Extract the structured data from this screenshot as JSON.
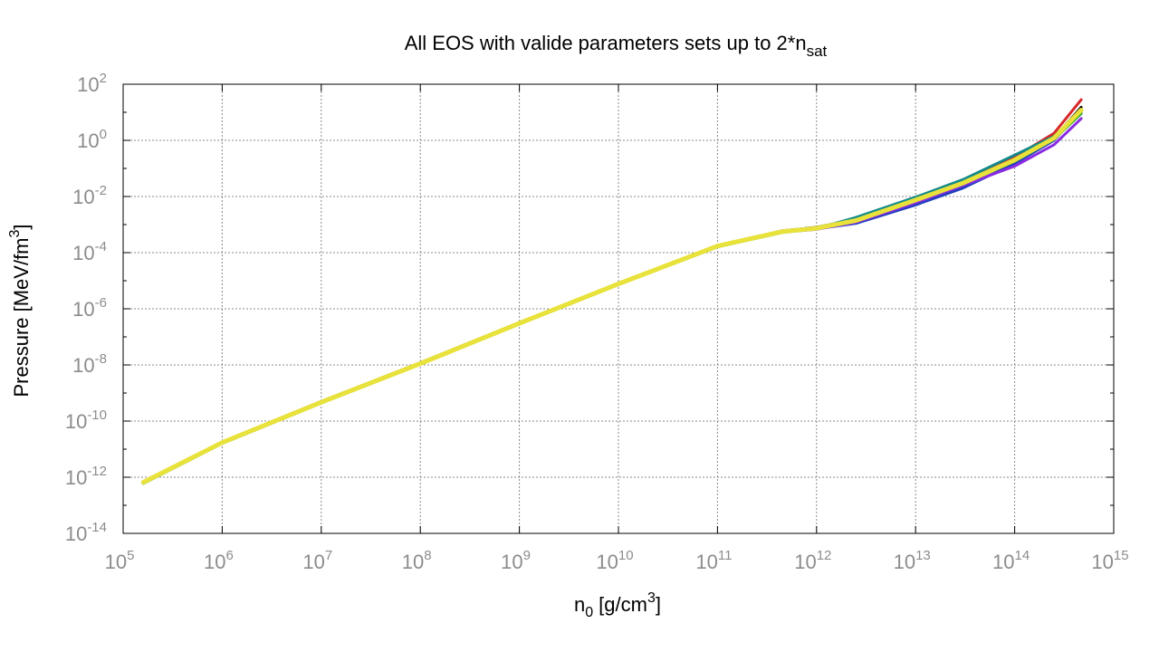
{
  "chart_data": {
    "type": "line",
    "title": {
      "main": "All EOS with valide parameters sets up to 2*n",
      "sub": "sat"
    },
    "xlabel": {
      "base": "n",
      "base_sub": "0",
      "bracket": "[g/cm",
      "sup": "3",
      "close": "]"
    },
    "ylabel": {
      "text": "Pressure [MeV/fm",
      "sup": "3",
      "close": "]"
    },
    "xscale": "log",
    "yscale": "log",
    "xlim": [
      100000,
      1000000000000000
    ],
    "ylim": [
      1e-14,
      100
    ],
    "grid": true,
    "legend": false,
    "x_ticks": [
      {
        "base": "10",
        "exp": "5"
      },
      {
        "base": "10",
        "exp": "6"
      },
      {
        "base": "10",
        "exp": "7"
      },
      {
        "base": "10",
        "exp": "8"
      },
      {
        "base": "10",
        "exp": "9"
      },
      {
        "base": "10",
        "exp": "10"
      },
      {
        "base": "10",
        "exp": "11"
      },
      {
        "base": "10",
        "exp": "12"
      },
      {
        "base": "10",
        "exp": "13"
      },
      {
        "base": "10",
        "exp": "14"
      },
      {
        "base": "10",
        "exp": "15"
      }
    ],
    "y_ticks": [
      {
        "base": "10",
        "exp": "-14"
      },
      {
        "base": "10",
        "exp": "-12"
      },
      {
        "base": "10",
        "exp": "-10"
      },
      {
        "base": "10",
        "exp": "-8"
      },
      {
        "base": "10",
        "exp": "-6"
      },
      {
        "base": "10",
        "exp": "-4"
      },
      {
        "base": "10",
        "exp": "-2"
      },
      {
        "base": "10",
        "exp": "0"
      },
      {
        "base": "10",
        "exp": "2"
      }
    ],
    "series": [
      {
        "color": "#000000",
        "x": [
          160000,
          1000000.0,
          10000000.0,
          100000000.0,
          1000000000.0,
          10000000000.0,
          100000000000.0,
          450000000000.0,
          1000000000000.0,
          2500000000000.0,
          10000000000000.0,
          30000000000000.0,
          100000000000000.0,
          250000000000000.0,
          470000000000000.0
        ],
        "y": [
          7e-13,
          1.8e-11,
          5e-10,
          1.2e-08,
          3.2e-07,
          8e-06,
          0.00018,
          0.0006,
          0.0008,
          0.0015,
          0.008,
          0.03,
          0.2,
          1.2,
          15
        ]
      },
      {
        "color": "#d62728",
        "x": [
          160000,
          1000000.0,
          10000000.0,
          100000000.0,
          1000000000.0,
          10000000000.0,
          100000000000.0,
          450000000000.0,
          1000000000000.0,
          2500000000000.0,
          10000000000000.0,
          30000000000000.0,
          100000000000000.0,
          250000000000000.0,
          470000000000000.0
        ],
        "y": [
          6.8e-13,
          1.75e-11,
          4.8e-10,
          1.15e-08,
          3.1e-07,
          7.8e-06,
          0.000175,
          0.00058,
          0.00075,
          0.0013,
          0.009,
          0.035,
          0.25,
          1.8,
          28
        ]
      },
      {
        "color": "#1f3fbf",
        "x": [
          160000,
          1000000.0,
          10000000.0,
          100000000.0,
          1000000000.0,
          10000000000.0,
          100000000000.0,
          450000000000.0,
          1000000000000.0,
          2500000000000.0,
          10000000000000.0,
          30000000000000.0,
          100000000000000.0,
          250000000000000.0,
          470000000000000.0
        ],
        "y": [
          6.5e-13,
          1.7e-11,
          4.6e-10,
          1.1e-08,
          3e-07,
          7.5e-06,
          0.00017,
          0.00055,
          0.0007,
          0.0011,
          0.005,
          0.02,
          0.15,
          1.0,
          12
        ]
      },
      {
        "color": "#8a2be2",
        "x": [
          160000,
          1000000.0,
          10000000.0,
          100000000.0,
          1000000000.0,
          10000000000.0,
          100000000000.0,
          450000000000.0,
          1000000000000.0,
          2500000000000.0,
          10000000000000.0,
          30000000000000.0,
          100000000000000.0,
          250000000000000.0,
          470000000000000.0
        ],
        "y": [
          6.3e-13,
          1.65e-11,
          4.5e-10,
          1.08e-08,
          2.9e-07,
          7.3e-06,
          0.000165,
          0.00053,
          0.00068,
          0.0012,
          0.006,
          0.025,
          0.12,
          0.7,
          6
        ]
      },
      {
        "color": "#138a8a",
        "x": [
          160000,
          1000000.0,
          10000000.0,
          100000000.0,
          1000000000.0,
          10000000000.0,
          100000000000.0,
          450000000000.0,
          1000000000000.0,
          2500000000000.0,
          10000000000000.0,
          30000000000000.0,
          100000000000000.0,
          250000000000000.0,
          470000000000000.0
        ],
        "y": [
          6.4e-13,
          1.68e-11,
          4.7e-10,
          1.1e-08,
          3e-07,
          7.6e-06,
          0.00017,
          0.00056,
          0.00072,
          0.0018,
          0.0095,
          0.04,
          0.3,
          1.4,
          10
        ]
      },
      {
        "color": "#2ca02c",
        "x": [
          160000,
          1000000.0,
          10000000.0,
          100000000.0,
          1000000000.0,
          10000000000.0,
          100000000000.0,
          450000000000.0,
          1000000000000.0,
          2500000000000.0,
          10000000000000.0,
          30000000000000.0,
          100000000000000.0,
          250000000000000.0,
          470000000000000.0
        ],
        "y": [
          6e-13,
          1.6e-11,
          4.4e-10,
          1.05e-08,
          2.85e-07,
          7.2e-06,
          0.00016,
          0.00052,
          0.0007,
          0.0014,
          0.007,
          0.028,
          0.18,
          1.1,
          9
        ]
      },
      {
        "color": "#e8e23a",
        "x": [
          160000,
          1000000.0,
          10000000.0,
          100000000.0,
          1000000000.0,
          10000000000.0,
          100000000000.0,
          450000000000.0,
          1000000000000.0,
          2500000000000.0,
          10000000000000.0,
          30000000000000.0,
          100000000000000.0,
          250000000000000.0,
          470000000000000.0
        ],
        "y": [
          6.6e-13,
          1.72e-11,
          4.7e-10,
          1.12e-08,
          3.05e-07,
          7.7e-06,
          0.000172,
          0.00056,
          0.00074,
          0.0014,
          0.0075,
          0.03,
          0.2,
          1.2,
          12
        ]
      }
    ]
  }
}
